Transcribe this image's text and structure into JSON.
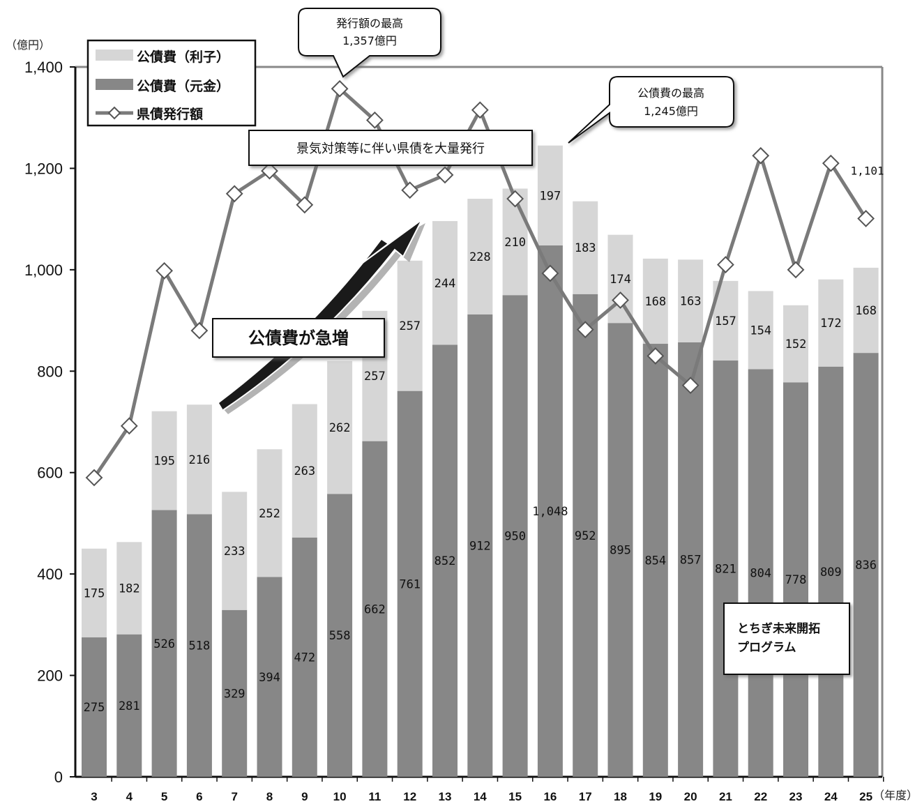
{
  "chart_data": {
    "type": "bar",
    "stacked": true,
    "y_unit": "（億円）",
    "x_unit": "（年度）",
    "ylim": [
      0,
      1400
    ],
    "yticks": [
      "0",
      "200",
      "400",
      "600",
      "800",
      "1,000",
      "1,200",
      "1,400"
    ],
    "ytick_values": [
      0,
      200,
      400,
      600,
      800,
      1000,
      1200,
      1400
    ],
    "categories": [
      "3",
      "4",
      "5",
      "6",
      "7",
      "8",
      "9",
      "10",
      "11",
      "12",
      "13",
      "14",
      "15",
      "16",
      "17",
      "18",
      "19",
      "20",
      "21",
      "22",
      "23",
      "24",
      "25"
    ],
    "series": [
      {
        "name": "公債費（元金）",
        "kind": "bar",
        "color": "#878787",
        "values": [
          275,
          281,
          526,
          518,
          329,
          394,
          472,
          558,
          662,
          761,
          852,
          912,
          950,
          1048,
          952,
          895,
          854,
          857,
          821,
          804,
          778,
          809,
          836
        ],
        "labels": [
          "275",
          "281",
          "526",
          "518",
          "329",
          "394",
          "472",
          "558",
          "662",
          "761",
          "852",
          "912",
          "950",
          "1,048",
          "952",
          "895",
          "854",
          "857",
          "821",
          "804",
          "778",
          "809",
          "836"
        ]
      },
      {
        "name": "公債費（利子）",
        "kind": "bar",
        "color": "#d6d6d6",
        "values": [
          175,
          182,
          195,
          216,
          233,
          252,
          263,
          262,
          257,
          257,
          244,
          228,
          210,
          197,
          183,
          174,
          168,
          163,
          157,
          154,
          152,
          172,
          168
        ],
        "labels": [
          "175",
          "182",
          "195",
          "216",
          "233",
          "252",
          "263",
          "262",
          "257",
          "257",
          "244",
          "228",
          "210",
          "197",
          "183",
          "174",
          "168",
          "163",
          "157",
          "154",
          "152",
          "172",
          "168"
        ]
      },
      {
        "name": "県債発行額",
        "kind": "line",
        "color": "#7a7a7a",
        "values": [
          590,
          692,
          998,
          880,
          1150,
          1195,
          1128,
          1357,
          1295,
          1157,
          1187,
          1315,
          1140,
          993,
          882,
          940,
          830,
          772,
          1010,
          1225,
          1000,
          1210,
          1101
        ],
        "last_label": "1,101"
      }
    ],
    "legend": {
      "placement": "top-left",
      "items": [
        "公債費（利子）",
        "公債費（元金）",
        "県債発行額"
      ]
    },
    "annotations": {
      "issue_peak_line1": "発行額の最高",
      "issue_peak_line2": "1,357億円",
      "debt_peak_line1": "公債費の最高",
      "debt_peak_line2": "1,245億円",
      "stimulus": "景気対策等に伴い県債を大量発行",
      "surge": "公債費が急増",
      "program_line1": "とちぎ未来開拓",
      "program_line2": "プログラム"
    }
  }
}
